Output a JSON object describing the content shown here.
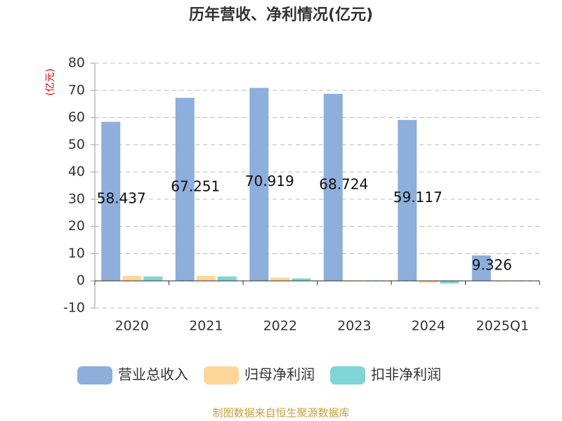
{
  "chart_data": {
    "type": "bar",
    "title": "历年营收、净利情况(亿元)",
    "y_label": "(亿元)",
    "categories": [
      "2020",
      "2021",
      "2022",
      "2023",
      "2024",
      "2025Q1"
    ],
    "series": [
      {
        "name": "营业总收入",
        "color": "#8eaedb",
        "values": [
          58.437,
          67.251,
          70.919,
          68.724,
          59.117,
          9.326
        ],
        "show_labels": true
      },
      {
        "name": "归母净利润",
        "color": "#fdd79a",
        "values": [
          1.8,
          1.8,
          1.2,
          -0.2,
          -0.7,
          0.2
        ],
        "show_labels": false
      },
      {
        "name": "扣非净利润",
        "color": "#7fd5d5",
        "values": [
          1.6,
          1.6,
          0.9,
          -0.2,
          -1.0,
          0.1
        ],
        "show_labels": false
      }
    ],
    "ylim": [
      -10,
      80
    ],
    "yticks": [
      -10,
      0,
      10,
      20,
      30,
      40,
      50,
      60,
      70,
      80
    ],
    "grid": true,
    "source": "制图数据来自恒生聚源数据库"
  }
}
